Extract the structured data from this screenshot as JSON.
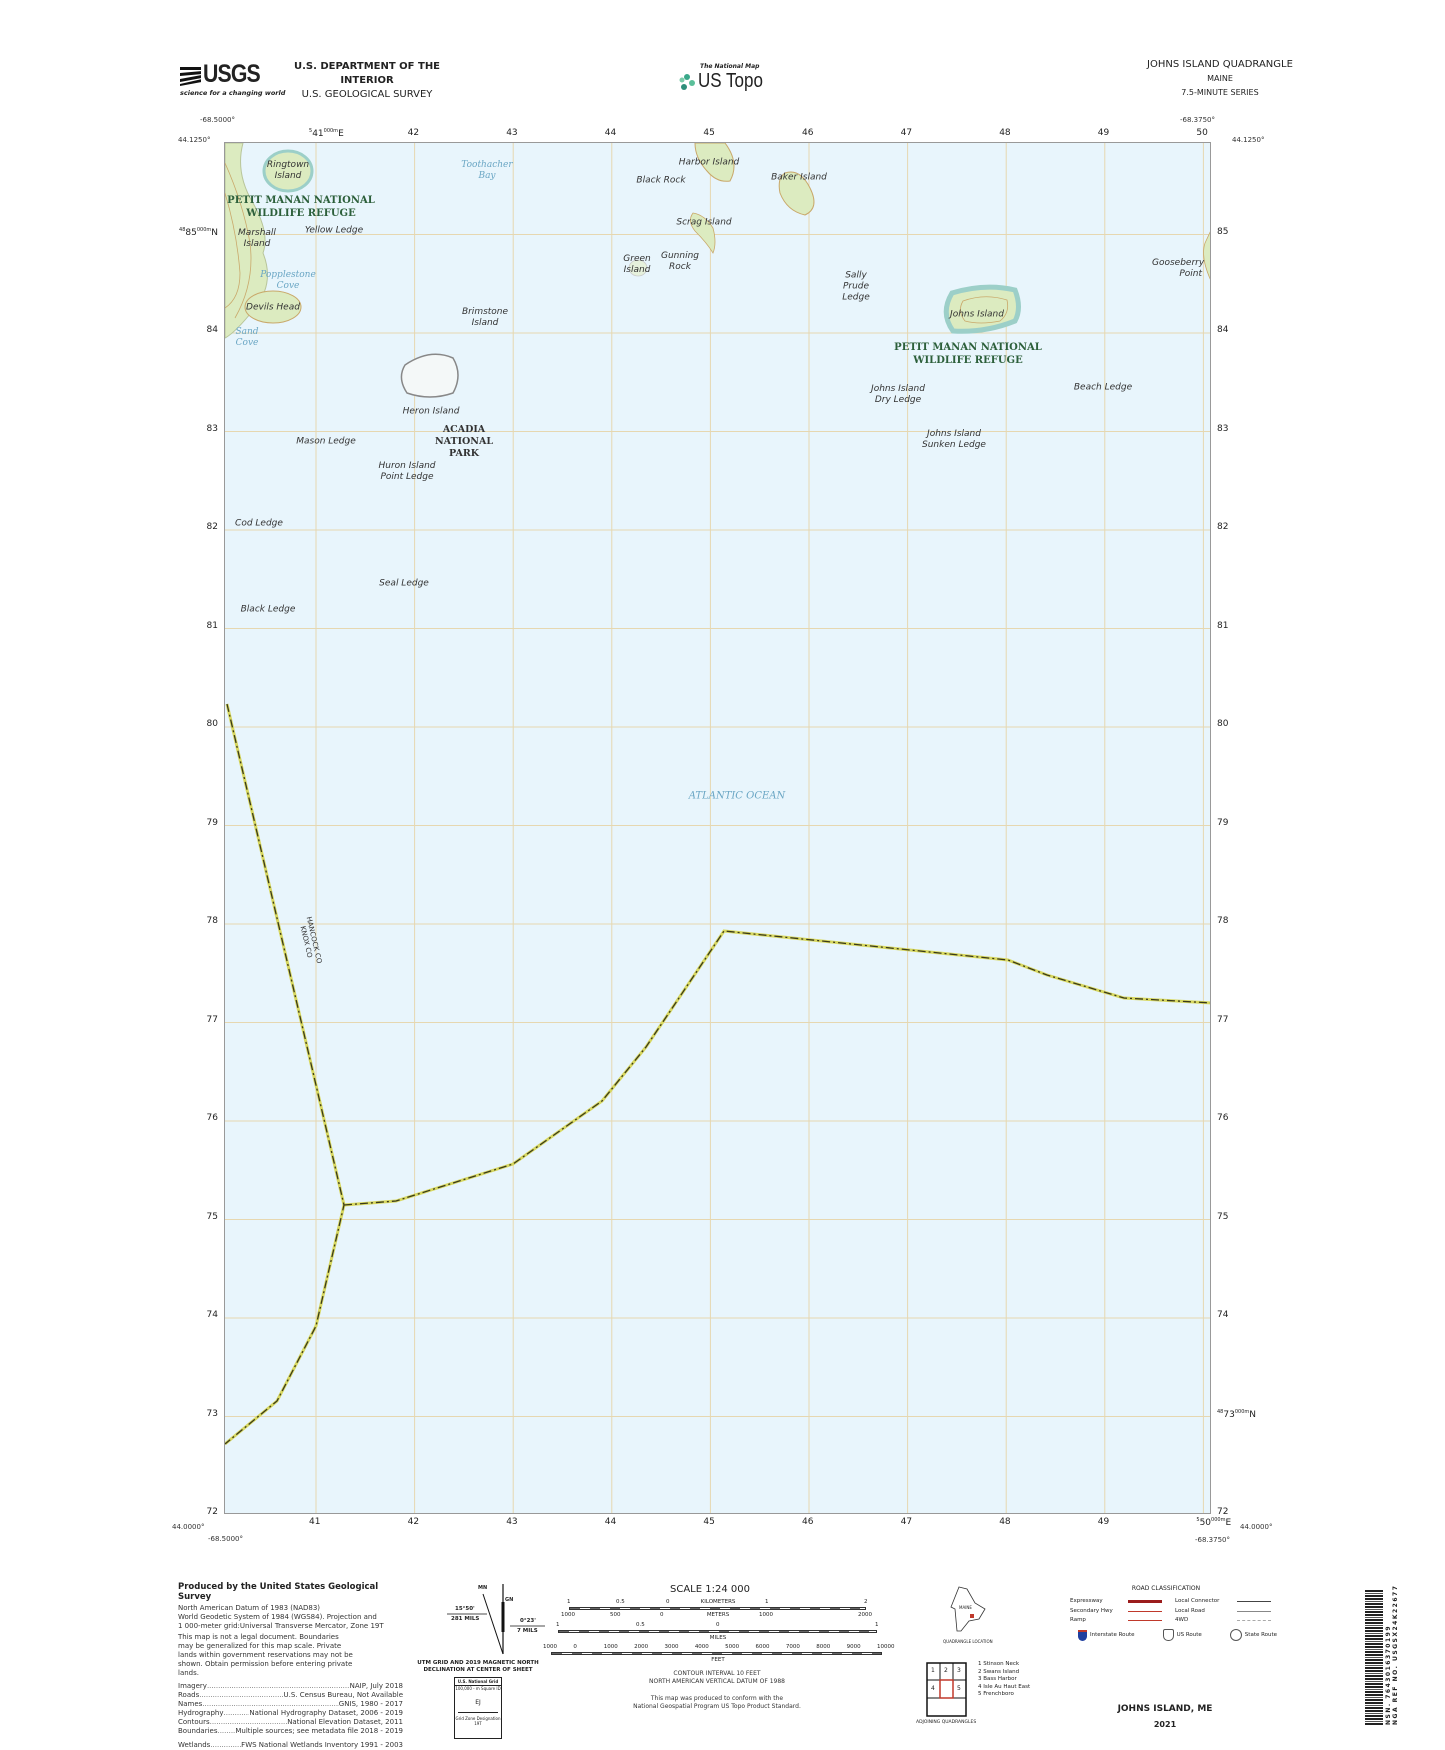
{
  "header": {
    "usgs_logo": "USGS",
    "usgs_tagline": "science for a changing world",
    "department": "U.S. DEPARTMENT OF THE INTERIOR",
    "survey": "U.S. GEOLOGICAL SURVEY",
    "national_map": "The National Map",
    "us_topo": "US Topo",
    "quad_title": "JOHNS ISLAND QUADRANGLE",
    "state": "MAINE",
    "series": "7.5-MINUTE SERIES"
  },
  "map": {
    "corners": {
      "west": "-68.5000°",
      "east": "-68.3750°",
      "north": "44.1250°",
      "south": "44.0000°"
    },
    "easting_labels": [
      "41",
      "42",
      "43",
      "44",
      "45",
      "46",
      "47",
      "48",
      "49",
      "50"
    ],
    "easting_first_prefix": "5",
    "easting_suffix": "000m E",
    "northing_labels": [
      "85",
      "84",
      "83",
      "82",
      "81",
      "80",
      "79",
      "78",
      "77",
      "76",
      "75",
      "74",
      "73",
      "72"
    ],
    "northing_prefix": "48",
    "northing_suffix": "000m N",
    "colors": {
      "water": "#e8f5fc",
      "land": "#dcebc0",
      "contour": "#c9a86a",
      "grid": "#e6d7b0",
      "boundary": "#3a3a1a",
      "boundary_tint": "#d8d860"
    },
    "labels": {
      "ringtown": "Ringtown Island",
      "petit_manan_1": "PETIT MANAN NATIONAL WILDLIFE REFUGE",
      "marshall": "Marshall Island",
      "yellow_ledge": "Yellow Ledge",
      "toothacher": "Toothacher Bay",
      "popplestone": "Popplestone Cove",
      "devils_head": "Devils Head",
      "sand_cove": "Sand Cove",
      "brimstone": "Brimstone Island",
      "heron": "Heron Island",
      "acadia": "ACADIA NATIONAL PARK",
      "mason": "Mason Ledge",
      "huron": "Huron Island Point Ledge",
      "cod": "Cod Ledge",
      "seal": "Seal Ledge",
      "black_ledge": "Black Ledge",
      "harbor": "Harbor Island",
      "black_rock": "Black Rock",
      "baker": "Baker Island",
      "scrag": "Scrag Island",
      "green": "Green Island",
      "gunning": "Gunning Rock",
      "sally": "Sally Prude Ledge",
      "johns": "Johns Island",
      "petit_manan_2": "PETIT MANAN NATIONAL WILDLIFE REFUGE",
      "johns_dry": "Johns Island Dry Ledge",
      "johns_sunken": "Johns Island Sunken Ledge",
      "beach": "Beach Ledge",
      "gooseberry": "Gooseberry Point",
      "ocean": "ATLANTIC OCEAN",
      "hancock": "HANCOCK CO",
      "knox": "KNOX CO"
    }
  },
  "footer": {
    "produced_by": "Produced by the United States Geological Survey",
    "datum_lines": [
      "North American Datum of 1983 (NAD83)",
      "World Geodetic System of 1984 (WGS84). Projection and",
      "1 000-meter grid:Universal Transverse Mercator, Zone 19T"
    ],
    "disclaimer": "This map is not a legal document. Boundaries may be generalized for this map scale. Private lands within government reservations may not be shown. Obtain permission before entering private lands.",
    "sources": [
      {
        "name": "Imagery",
        "value": "NAIP, July 2018"
      },
      {
        "name": "Roads",
        "value": "U.S. Census Bureau, Not Available"
      },
      {
        "name": "Names",
        "value": "GNIS, 1980 - 2017"
      },
      {
        "name": "Hydrography",
        "value": "National Hydrography Dataset, 2006 - 2019"
      },
      {
        "name": "Contours",
        "value": "National Elevation Dataset, 2011"
      },
      {
        "name": "Boundaries",
        "value": "Multiple sources; see metadata file 2018 - 2019"
      },
      {
        "name": "Wetlands",
        "value": "FWS National Wetlands Inventory 1991 - 2003"
      }
    ],
    "declination": {
      "mn_label": "MN",
      "gn_label": "GN",
      "left_angle": "15°50'",
      "left_mils": "281 MILS",
      "right_angle": "0°23'",
      "right_mils": "7 MILS",
      "caption": [
        "UTM GRID AND 2019 MAGNETIC NORTH",
        "DECLINATION AT CENTER OF SHEET"
      ]
    },
    "usng": {
      "title": "U.S. National Grid",
      "square_label": "100,000 - m Square ID",
      "square_id": "EJ",
      "gzd_label": "Grid Zone Designation",
      "gzd": "19T"
    },
    "scale": {
      "title": "SCALE 1:24 000",
      "km_ticks": [
        "1",
        "0.5",
        "0",
        "1",
        "2"
      ],
      "km_label": "KILOMETERS",
      "m_ticks": [
        "1000",
        "500",
        "0",
        "1000",
        "2000"
      ],
      "m_label": "METERS",
      "mi_ticks": [
        "1",
        "0.5",
        "0",
        "1"
      ],
      "mi_label": "MILES",
      "ft_ticks": [
        "1000",
        "0",
        "1000",
        "2000",
        "3000",
        "4000",
        "5000",
        "6000",
        "7000",
        "8000",
        "9000",
        "10000"
      ],
      "ft_label": "FEET"
    },
    "contour": [
      "CONTOUR INTERVAL 10 FEET",
      "NORTH AMERICAN VERTICAL DATUM OF 1988"
    ],
    "conform": [
      "This map was produced to conform with the",
      "National Geospatial Program US Topo Product Standard."
    ],
    "location": {
      "state_label": "MAINE",
      "caption": "QUADRANGLE LOCATION"
    },
    "adjoining": {
      "cells": [
        "1",
        "2",
        "3",
        "4",
        "5"
      ],
      "names": [
        "1 Stinson Neck",
        "2 Swans Island",
        "3 Bass Harbor",
        "4 Isle Au Haut East",
        "5 Frenchboro"
      ],
      "caption": "ADJOINING QUADRANGLES"
    },
    "roads": {
      "title": "ROAD CLASSIFICATION",
      "left": [
        "Expressway",
        "Secondary Hwy",
        "Ramp"
      ],
      "right": [
        "Local Connector",
        "Local Road",
        "4WD"
      ],
      "routes": [
        "Interstate Route",
        "US Route",
        "State Route"
      ],
      "colors": {
        "expressway": "#9b1c1c",
        "secondary": "#c0392b",
        "interstate": "#1f3f9f"
      }
    },
    "sheet_name": "JOHNS ISLAND, ME",
    "year": "2021",
    "barcode": {
      "nsn": "NSN. 7643016370199",
      "nga": "NGA REF NO. USGSX24K22677"
    }
  }
}
